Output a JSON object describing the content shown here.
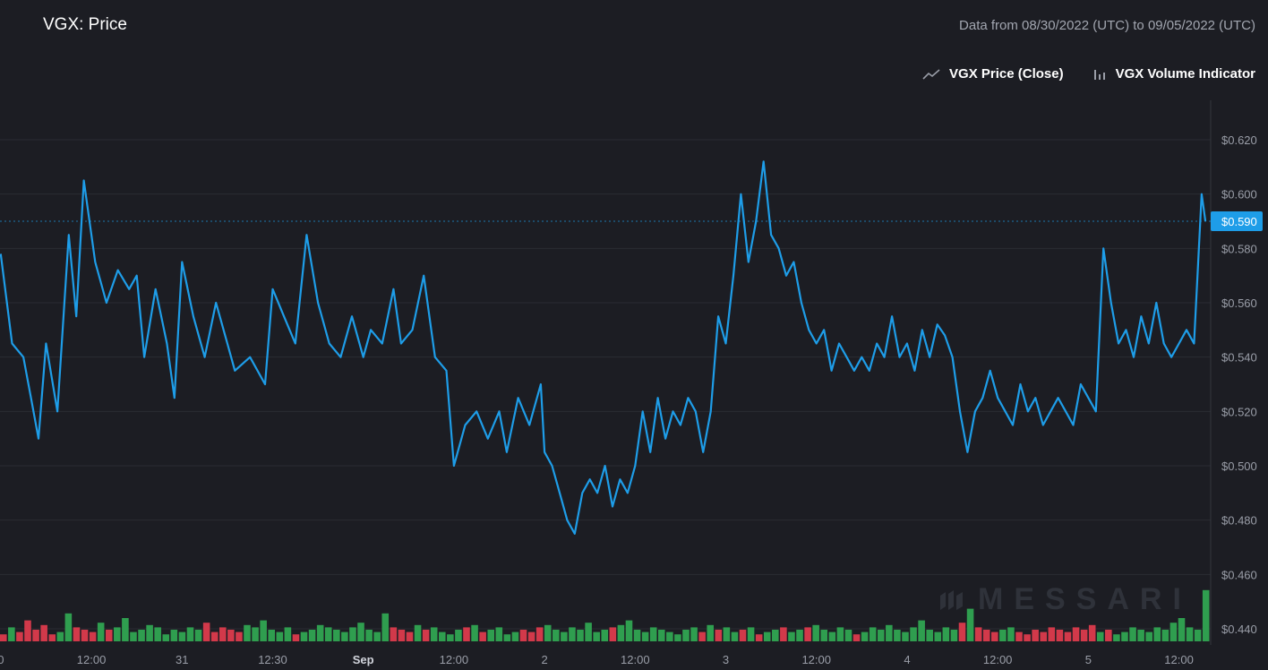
{
  "header": {
    "title": "VGX: Price",
    "date_range": "Data from 08/30/2022 (UTC) to 09/05/2022 (UTC)"
  },
  "legend": {
    "price_label": "VGX Price (Close)",
    "volume_label": "VGX Volume Indicator"
  },
  "watermark": "MESSARI",
  "colors": {
    "background": "#1c1d23",
    "price_line": "#1e9de8",
    "volume_up": "#2f9e4f",
    "volume_down": "#d2394a",
    "grid": "#2a2c33",
    "badge": "#1e9de8"
  },
  "chart_data": {
    "type": "line",
    "title": "VGX: Price",
    "series": [
      {
        "name": "VGX Price (Close)",
        "points": [
          [
            "08/30 00:00",
            0.578
          ],
          [
            "08/30 01:30",
            0.545
          ],
          [
            "08/30 03:00",
            0.54
          ],
          [
            "08/30 04:00",
            0.525
          ],
          [
            "08/30 05:00",
            0.51
          ],
          [
            "08/30 06:00",
            0.545
          ],
          [
            "08/30 07:30",
            0.52
          ],
          [
            "08/30 09:00",
            0.585
          ],
          [
            "08/30 10:00",
            0.555
          ],
          [
            "08/30 11:00",
            0.605
          ],
          [
            "08/30 12:30",
            0.575
          ],
          [
            "08/30 14:00",
            0.56
          ],
          [
            "08/30 15:30",
            0.572
          ],
          [
            "08/30 17:00",
            0.565
          ],
          [
            "08/30 18:00",
            0.57
          ],
          [
            "08/30 19:00",
            0.54
          ],
          [
            "08/30 20:30",
            0.565
          ],
          [
            "08/30 22:00",
            0.545
          ],
          [
            "08/30 23:00",
            0.525
          ],
          [
            "08/31 00:00",
            0.575
          ],
          [
            "08/31 01:30",
            0.555
          ],
          [
            "08/31 03:00",
            0.54
          ],
          [
            "08/31 04:30",
            0.56
          ],
          [
            "08/31 06:00",
            0.545
          ],
          [
            "08/31 07:00",
            0.535
          ],
          [
            "08/31 09:00",
            0.54
          ],
          [
            "08/31 11:00",
            0.53
          ],
          [
            "08/31 12:00",
            0.565
          ],
          [
            "08/31 13:30",
            0.555
          ],
          [
            "08/31 15:00",
            0.545
          ],
          [
            "08/31 16:30",
            0.585
          ],
          [
            "08/31 18:00",
            0.56
          ],
          [
            "08/31 19:30",
            0.545
          ],
          [
            "08/31 21:00",
            0.54
          ],
          [
            "08/31 22:30",
            0.555
          ],
          [
            "09/01 00:00",
            0.54
          ],
          [
            "09/01 01:00",
            0.55
          ],
          [
            "09/01 02:30",
            0.545
          ],
          [
            "09/01 04:00",
            0.565
          ],
          [
            "09/01 05:00",
            0.545
          ],
          [
            "09/01 06:30",
            0.55
          ],
          [
            "09/01 08:00",
            0.57
          ],
          [
            "09/01 09:30",
            0.54
          ],
          [
            "09/01 11:00",
            0.535
          ],
          [
            "09/01 12:00",
            0.5
          ],
          [
            "09/01 13:30",
            0.515
          ],
          [
            "09/01 15:00",
            0.52
          ],
          [
            "09/01 16:30",
            0.51
          ],
          [
            "09/01 18:00",
            0.52
          ],
          [
            "09/01 19:00",
            0.505
          ],
          [
            "09/01 20:30",
            0.525
          ],
          [
            "09/01 22:00",
            0.515
          ],
          [
            "09/01 23:30",
            0.53
          ],
          [
            "09/02 00:00",
            0.505
          ],
          [
            "09/02 01:00",
            0.5
          ],
          [
            "09/02 02:00",
            0.49
          ],
          [
            "09/02 03:00",
            0.48
          ],
          [
            "09/02 04:00",
            0.475
          ],
          [
            "09/02 05:00",
            0.49
          ],
          [
            "09/02 06:00",
            0.495
          ],
          [
            "09/02 07:00",
            0.49
          ],
          [
            "09/02 08:00",
            0.5
          ],
          [
            "09/02 09:00",
            0.485
          ],
          [
            "09/02 10:00",
            0.495
          ],
          [
            "09/02 11:00",
            0.49
          ],
          [
            "09/02 12:00",
            0.5
          ],
          [
            "09/02 13:00",
            0.52
          ],
          [
            "09/02 14:00",
            0.505
          ],
          [
            "09/02 15:00",
            0.525
          ],
          [
            "09/02 16:00",
            0.51
          ],
          [
            "09/02 17:00",
            0.52
          ],
          [
            "09/02 18:00",
            0.515
          ],
          [
            "09/02 19:00",
            0.525
          ],
          [
            "09/02 20:00",
            0.52
          ],
          [
            "09/02 21:00",
            0.505
          ],
          [
            "09/02 22:00",
            0.52
          ],
          [
            "09/02 23:00",
            0.555
          ],
          [
            "09/03 00:00",
            0.545
          ],
          [
            "09/03 01:00",
            0.57
          ],
          [
            "09/03 02:00",
            0.6
          ],
          [
            "09/03 03:00",
            0.575
          ],
          [
            "09/03 04:00",
            0.59
          ],
          [
            "09/03 05:00",
            0.612
          ],
          [
            "09/03 06:00",
            0.585
          ],
          [
            "09/03 07:00",
            0.58
          ],
          [
            "09/03 08:00",
            0.57
          ],
          [
            "09/03 09:00",
            0.575
          ],
          [
            "09/03 10:00",
            0.56
          ],
          [
            "09/03 11:00",
            0.55
          ],
          [
            "09/03 12:00",
            0.545
          ],
          [
            "09/03 13:00",
            0.55
          ],
          [
            "09/03 14:00",
            0.535
          ],
          [
            "09/03 15:00",
            0.545
          ],
          [
            "09/03 16:00",
            0.54
          ],
          [
            "09/03 17:00",
            0.535
          ],
          [
            "09/03 18:00",
            0.54
          ],
          [
            "09/03 19:00",
            0.535
          ],
          [
            "09/03 20:00",
            0.545
          ],
          [
            "09/03 21:00",
            0.54
          ],
          [
            "09/03 22:00",
            0.555
          ],
          [
            "09/03 23:00",
            0.54
          ],
          [
            "09/04 00:00",
            0.545
          ],
          [
            "09/04 01:00",
            0.535
          ],
          [
            "09/04 02:00",
            0.55
          ],
          [
            "09/04 03:00",
            0.54
          ],
          [
            "09/04 04:00",
            0.552
          ],
          [
            "09/04 05:00",
            0.548
          ],
          [
            "09/04 06:00",
            0.54
          ],
          [
            "09/04 07:00",
            0.52
          ],
          [
            "09/04 08:00",
            0.505
          ],
          [
            "09/04 09:00",
            0.52
          ],
          [
            "09/04 10:00",
            0.525
          ],
          [
            "09/04 11:00",
            0.535
          ],
          [
            "09/04 12:00",
            0.525
          ],
          [
            "09/04 13:00",
            0.52
          ],
          [
            "09/04 14:00",
            0.515
          ],
          [
            "09/04 15:00",
            0.53
          ],
          [
            "09/04 16:00",
            0.52
          ],
          [
            "09/04 17:00",
            0.525
          ],
          [
            "09/04 18:00",
            0.515
          ],
          [
            "09/04 19:00",
            0.52
          ],
          [
            "09/04 20:00",
            0.525
          ],
          [
            "09/04 21:00",
            0.52
          ],
          [
            "09/04 22:00",
            0.515
          ],
          [
            "09/04 23:00",
            0.53
          ],
          [
            "09/05 00:00",
            0.525
          ],
          [
            "09/05 01:00",
            0.52
          ],
          [
            "09/05 02:00",
            0.58
          ],
          [
            "09/05 03:00",
            0.56
          ],
          [
            "09/05 04:00",
            0.545
          ],
          [
            "09/05 05:00",
            0.55
          ],
          [
            "09/05 06:00",
            0.54
          ],
          [
            "09/05 07:00",
            0.555
          ],
          [
            "09/05 08:00",
            0.545
          ],
          [
            "09/05 09:00",
            0.56
          ],
          [
            "09/05 10:00",
            0.545
          ],
          [
            "09/05 11:00",
            0.54
          ],
          [
            "09/05 12:00",
            0.545
          ],
          [
            "09/05 13:00",
            0.55
          ],
          [
            "09/05 14:00",
            0.545
          ],
          [
            "09/05 15:00",
            0.6
          ],
          [
            "09/05 15:30",
            0.59
          ]
        ]
      },
      {
        "name": "VGX Volume Indicator",
        "type": "bar",
        "note_values": "relative bar heights, unlabelled axis",
        "values": [
          3,
          6,
          4,
          9,
          5,
          7,
          3,
          4,
          12,
          6,
          5,
          4,
          8,
          5,
          6,
          10,
          4,
          5,
          7,
          6,
          3,
          5,
          4,
          6,
          5,
          8,
          4,
          6,
          5,
          4,
          7,
          6,
          9,
          5,
          4,
          6,
          3,
          4,
          5,
          7,
          6,
          5,
          4,
          6,
          8,
          5,
          4,
          12,
          6,
          5,
          4,
          7,
          5,
          6,
          4,
          3,
          5,
          6,
          7,
          4,
          5,
          6,
          3,
          4,
          5,
          4,
          6,
          7,
          5,
          4,
          6,
          5,
          8,
          4,
          5,
          6,
          7,
          9,
          5,
          4,
          6,
          5,
          4,
          3,
          5,
          6,
          4,
          7,
          5,
          6,
          4,
          5,
          6,
          3,
          4,
          5,
          6,
          4,
          5,
          6,
          7,
          5,
          4,
          6,
          5,
          3,
          4,
          6,
          5,
          7,
          5,
          4,
          6,
          9,
          5,
          4,
          6,
          5,
          8,
          14,
          6,
          5,
          4,
          5,
          6,
          4,
          3,
          5,
          4,
          6,
          5,
          4,
          6,
          5,
          7,
          4,
          5,
          3,
          4,
          6,
          5,
          4,
          6,
          5,
          8,
          10,
          6,
          5,
          22
        ]
      }
    ],
    "x_tick_labels": [
      "0",
      "12:00",
      "31",
      "12:30",
      "Sep",
      "12:00",
      "2",
      "12:00",
      "3",
      "12:00",
      "4",
      "12:00",
      "5",
      "12:00"
    ],
    "bold_tick_labels": [
      "Sep"
    ],
    "y_tick_labels": [
      "$0.620",
      "$0.600",
      "$0.580",
      "$0.560",
      "$0.540",
      "$0.520",
      "$0.500",
      "$0.480",
      "$0.460",
      "$0.440"
    ],
    "ylim": [
      0.44,
      0.62
    ],
    "last_price_label": "$0.590",
    "last_price": 0.59,
    "grid": true,
    "legend_position": "top-right"
  }
}
